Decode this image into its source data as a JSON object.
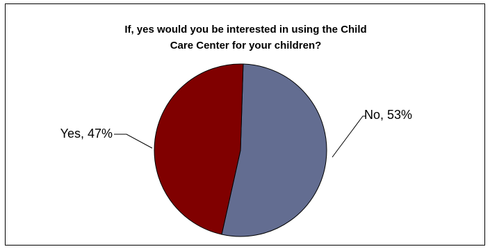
{
  "chart_data": {
    "type": "pie",
    "title_lines": [
      "If, yes would you be interested in using the Child",
      "Care Center for your children?"
    ],
    "slices": [
      {
        "label": "No, 53%",
        "category": "No",
        "value": 53,
        "color": "#636D91"
      },
      {
        "label": "Yes, 47%",
        "category": "Yes",
        "value": 47,
        "color": "#800000"
      }
    ],
    "legend": "none"
  }
}
